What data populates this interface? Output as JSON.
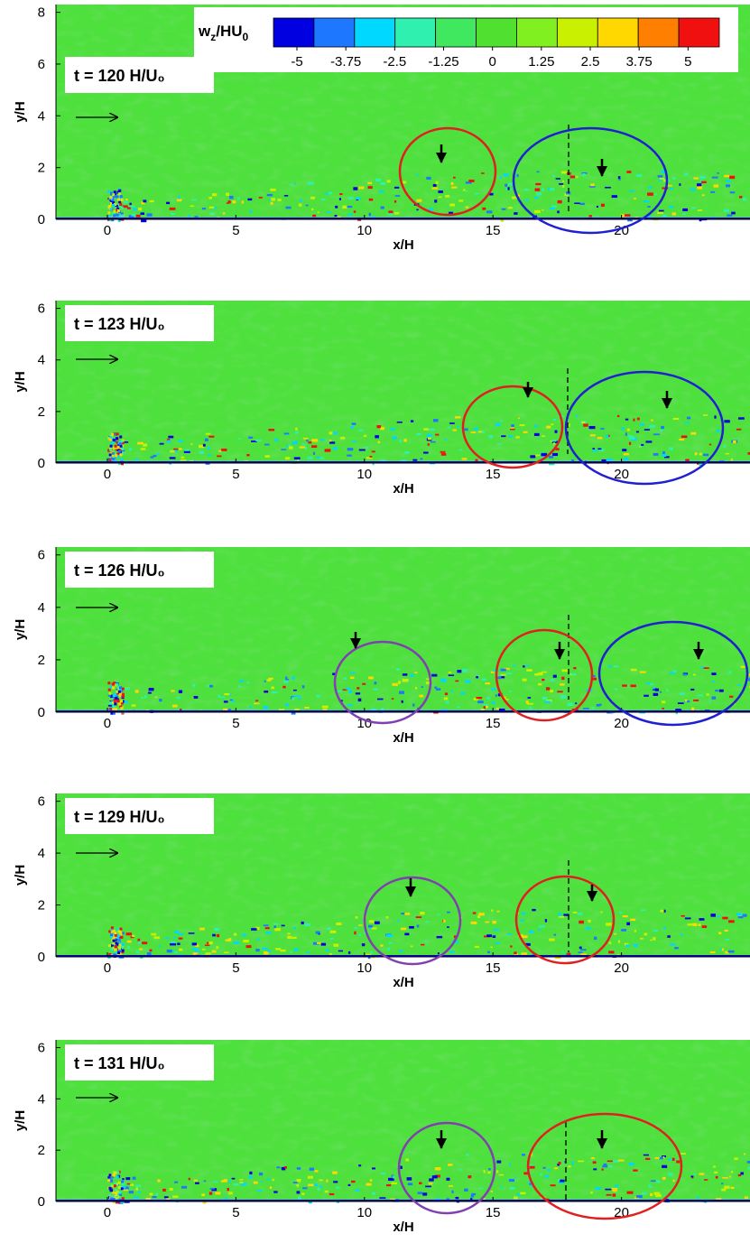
{
  "chart_data": [
    {
      "type": "contour",
      "annotation": "t = 120 H/U₀",
      "xlabel": "x/H",
      "ylabel": "y/H",
      "xlim": [
        -2,
        25
      ],
      "ylim": [
        0,
        8.3
      ],
      "xticks": [
        0,
        5,
        10,
        15,
        20
      ],
      "yticks": [
        0,
        2,
        4,
        6,
        8
      ],
      "colorbar": {
        "title": [
          "w",
          "z",
          "/HU",
          "0"
        ],
        "colors": [
          "#0000e0",
          "#1e78ff",
          "#00d8ff",
          "#30f0b0",
          "#40e860",
          "#50e030",
          "#80f020",
          "#c8f000",
          "#ffd800",
          "#ff8000",
          "#f01010"
        ],
        "clim": [
          -5.6,
          5.8
        ],
        "ticks": [
          -5,
          -3.75,
          -2.5,
          -1.25,
          0,
          1.25,
          2.5,
          3.75,
          5
        ]
      }
    },
    {
      "type": "contour",
      "annotation": "t = 123 H/U₀",
      "xlabel": "x/H",
      "ylabel": "y/H",
      "xlim": [
        -2,
        25
      ],
      "ylim": [
        0,
        6.3
      ],
      "xticks": [
        0,
        5,
        10,
        15,
        20
      ],
      "yticks": [
        0,
        2,
        4,
        6
      ]
    },
    {
      "type": "contour",
      "annotation": "t = 126 H/U₀",
      "xlabel": "x/H",
      "ylabel": "y/H",
      "xlim": [
        -2,
        25
      ],
      "ylim": [
        0,
        6.3
      ],
      "xticks": [
        0,
        5,
        10,
        15,
        20
      ],
      "yticks": [
        0,
        2,
        4,
        6
      ]
    },
    {
      "type": "contour",
      "annotation": "t = 129 H/U₀",
      "xlabel": "x/H",
      "ylabel": "y/H",
      "xlim": [
        -2,
        25
      ],
      "ylim": [
        0,
        6.3
      ],
      "xticks": [
        0,
        5,
        10,
        15,
        20
      ],
      "yticks": [
        0,
        2,
        4,
        6
      ]
    },
    {
      "type": "contour",
      "annotation": "t = 131 H/U₀",
      "xlabel": "x/H",
      "ylabel": "y/H",
      "xlim": [
        -2,
        25
      ],
      "ylim": [
        0,
        6.3
      ],
      "xticks": [
        0,
        5,
        10,
        15,
        20
      ],
      "yticks": [
        0,
        2,
        4,
        6
      ]
    }
  ]
}
